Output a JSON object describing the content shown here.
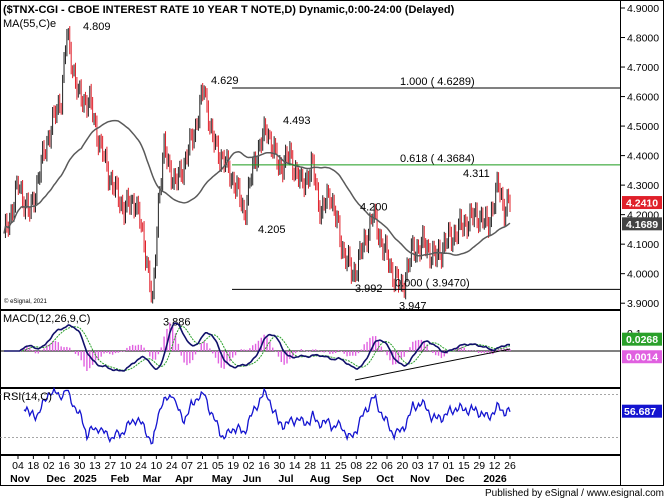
{
  "title": "($TNX-CGI - CBOE INTEREST RATE 10 YEAR T NOTE,D) Dynamic,0:00-24:00 (Delayed)",
  "ma_label": "MA(55,C)e",
  "copyright": "© eSignal, 2021",
  "publisher": "Published by eSignal / www.esignal.com",
  "colors": {
    "up_bar": "#222222",
    "down_bar": "#e0202a",
    "ma_line": "#5a5a5a",
    "fib_top": "#000000",
    "fib_618": "#1a9a1a",
    "price_badge": "#e0202a",
    "ma_badge": "#444444",
    "macd_line": "#10106a",
    "macd_signal": "#2aa02a",
    "macd_hist": "#e060e0",
    "rsi_line": "#1414d0",
    "trendline": "#000000"
  },
  "chart_data": [
    {
      "type": "line",
      "panel": "price",
      "title": "($TNX-CGI - CBOE INTEREST RATE 10 YEAR T NOTE,D) Dynamic,0:00-24:00 (Delayed)",
      "series": [
        {
          "name": "MA(55,C)e"
        }
      ],
      "ylim": [
        3.85,
        4.9
      ],
      "y_ticks": [
        "4.9000",
        "4.8000",
        "4.7000",
        "4.6000",
        "4.5000",
        "4.4000",
        "4.3000",
        "4.2000",
        "4.1000",
        "4.0000",
        "3.9000"
      ],
      "x_ticks": [
        "04",
        "18",
        "02",
        "16",
        "30",
        "13",
        "27",
        "10",
        "24",
        "10",
        "24",
        "07",
        "21",
        "05",
        "19",
        "02",
        "16",
        "30",
        "14",
        "28",
        "11",
        "25",
        "08",
        "22",
        "06",
        "20",
        "03",
        "17",
        "01",
        "15",
        "29",
        "12",
        "26"
      ],
      "x_months": [
        "Nov",
        "Dec",
        "2025",
        "Feb",
        "Mar",
        "Apr",
        "May",
        "Jun",
        "Jul",
        "Aug",
        "Sep",
        "Oct",
        "Nov",
        "Dec",
        "2026"
      ],
      "lines": [
        {
          "label": "1.000 ( 4.6289)",
          "y": 4.6289
        },
        {
          "label": "0.618 ( 4.3684)",
          "y": 4.3684
        },
        {
          "label": "0.000 ( 3.9470)",
          "y": 3.947
        }
      ],
      "annotations": [
        {
          "text": "4.809",
          "y": 4.809
        },
        {
          "text": "3.886",
          "y": 3.886
        },
        {
          "text": "4.629",
          "y": 4.629
        },
        {
          "text": "4.205",
          "y": 4.205
        },
        {
          "text": "4.493",
          "y": 4.493
        },
        {
          "text": "4.200",
          "y": 4.2
        },
        {
          "text": "3.992",
          "y": 3.992
        },
        {
          "text": "3.947",
          "y": 3.947
        },
        {
          "text": "4.311",
          "y": 4.311
        }
      ],
      "badges": [
        {
          "text": "4.2410",
          "y": 4.241
        },
        {
          "text": "4.1689",
          "y": 4.1689
        }
      ]
    },
    {
      "type": "line",
      "panel": "macd",
      "title": "MACD(12,26,9,C)",
      "ylim": [
        -0.15,
        0.11
      ],
      "y_ticks": [
        "0.1"
      ],
      "badges": [
        {
          "text": "0.0268",
          "y": 0.0268
        },
        {
          "text": "0.0014",
          "y": 0.0014
        }
      ]
    },
    {
      "type": "line",
      "panel": "rsi",
      "title": "RSI(14,C)",
      "ylim": [
        15,
        95
      ],
      "y_ticks": [
        "80",
        "20"
      ],
      "badges": [
        {
          "text": "56.687",
          "y": 56.687
        }
      ]
    }
  ]
}
